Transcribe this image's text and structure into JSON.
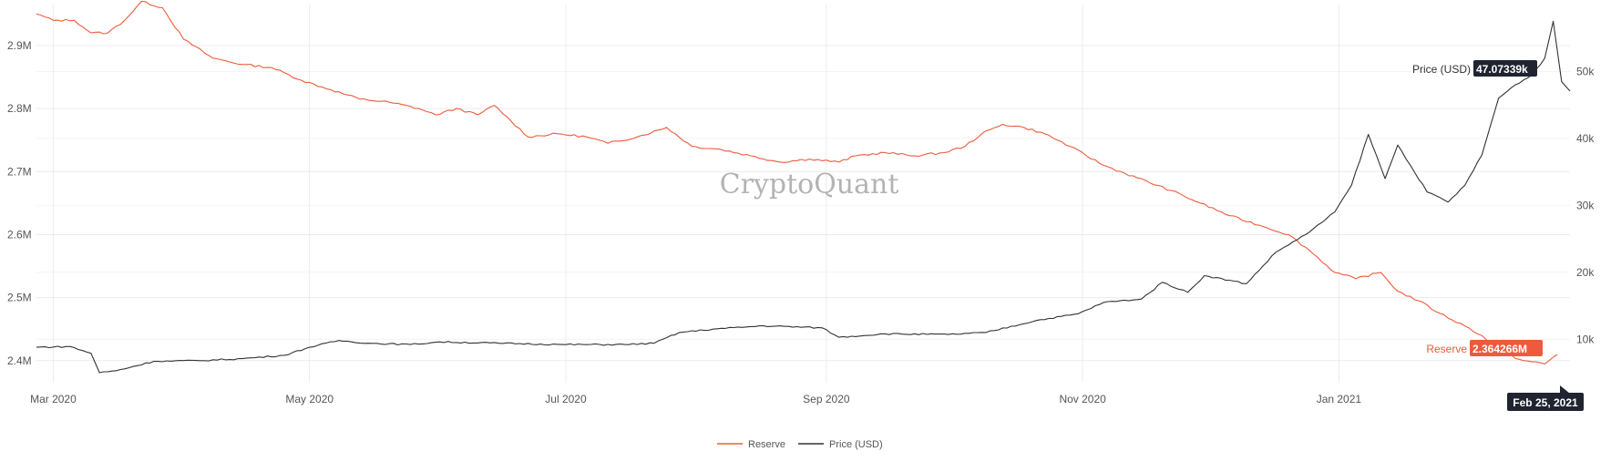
{
  "watermark": "CryptoQuant",
  "colors": {
    "reserve": "#ee5a3c",
    "price": "#333333",
    "tag_dark": "#1f2430",
    "grid": "#ececec"
  },
  "chart_data": {
    "type": "line",
    "x_ticks": [
      "Mar 2020",
      "May 2020",
      "Jul 2020",
      "Sep 2020",
      "Nov 2020",
      "Jan 2021"
    ],
    "x_tick_dates": [
      "2020-03-01",
      "2020-05-01",
      "2020-07-01",
      "2020-09-01",
      "2020-11-01",
      "2021-01-01"
    ],
    "xlim": [
      "2020-02-26",
      "2021-02-25"
    ],
    "y_left": {
      "ticks": [
        "2.4M",
        "2.5M",
        "2.6M",
        "2.7M",
        "2.8M",
        "2.9M"
      ],
      "values": [
        2400000,
        2500000,
        2600000,
        2700000,
        2800000,
        2900000
      ],
      "range": [
        2365000,
        2965000
      ]
    },
    "y_right": {
      "ticks": [
        "10k",
        "20k",
        "30k",
        "40k",
        "50k"
      ],
      "values": [
        10000,
        20000,
        30000,
        40000,
        50000
      ],
      "range": [
        3500,
        60000
      ]
    },
    "grid": true,
    "legend_placement": "bottom-center",
    "series": [
      {
        "name": "Reserve",
        "axis": "left",
        "points": [
          [
            "2020-02-26",
            2950000
          ],
          [
            "2020-03-01",
            2940000
          ],
          [
            "2020-03-06",
            2940000
          ],
          [
            "2020-03-10",
            2920000
          ],
          [
            "2020-03-14",
            2920000
          ],
          [
            "2020-03-18",
            2940000
          ],
          [
            "2020-03-22",
            2970000
          ],
          [
            "2020-03-27",
            2960000
          ],
          [
            "2020-04-01",
            2910000
          ],
          [
            "2020-04-08",
            2880000
          ],
          [
            "2020-04-15",
            2870000
          ],
          [
            "2020-04-22",
            2865000
          ],
          [
            "2020-04-29",
            2845000
          ],
          [
            "2020-05-06",
            2830000
          ],
          [
            "2020-05-13",
            2815000
          ],
          [
            "2020-05-20",
            2810000
          ],
          [
            "2020-05-27",
            2800000
          ],
          [
            "2020-05-31",
            2790000
          ],
          [
            "2020-06-05",
            2800000
          ],
          [
            "2020-06-10",
            2790000
          ],
          [
            "2020-06-14",
            2805000
          ],
          [
            "2020-06-18",
            2780000
          ],
          [
            "2020-06-22",
            2755000
          ],
          [
            "2020-06-29",
            2760000
          ],
          [
            "2020-07-06",
            2755000
          ],
          [
            "2020-07-11",
            2745000
          ],
          [
            "2020-07-18",
            2755000
          ],
          [
            "2020-07-25",
            2770000
          ],
          [
            "2020-07-31",
            2740000
          ],
          [
            "2020-08-07",
            2735000
          ],
          [
            "2020-08-14",
            2725000
          ],
          [
            "2020-08-21",
            2715000
          ],
          [
            "2020-08-28",
            2720000
          ],
          [
            "2020-09-04",
            2715000
          ],
          [
            "2020-09-08",
            2725000
          ],
          [
            "2020-09-15",
            2730000
          ],
          [
            "2020-09-22",
            2725000
          ],
          [
            "2020-09-29",
            2730000
          ],
          [
            "2020-10-04",
            2740000
          ],
          [
            "2020-10-08",
            2760000
          ],
          [
            "2020-10-13",
            2775000
          ],
          [
            "2020-10-18",
            2770000
          ],
          [
            "2020-10-23",
            2760000
          ],
          [
            "2020-10-29",
            2740000
          ],
          [
            "2020-11-06",
            2710000
          ],
          [
            "2020-11-14",
            2690000
          ],
          [
            "2020-11-22",
            2670000
          ],
          [
            "2020-11-29",
            2650000
          ],
          [
            "2020-12-06",
            2630000
          ],
          [
            "2020-12-13",
            2615000
          ],
          [
            "2020-12-20",
            2600000
          ],
          [
            "2020-12-25",
            2575000
          ],
          [
            "2020-12-31",
            2540000
          ],
          [
            "2021-01-05",
            2530000
          ],
          [
            "2021-01-11",
            2540000
          ],
          [
            "2021-01-15",
            2510000
          ],
          [
            "2021-01-20",
            2495000
          ],
          [
            "2021-01-25",
            2475000
          ],
          [
            "2021-01-31",
            2455000
          ],
          [
            "2021-02-04",
            2440000
          ],
          [
            "2021-02-07",
            2420000
          ],
          [
            "2021-02-10",
            2410000
          ],
          [
            "2021-02-14",
            2400000
          ],
          [
            "2021-02-19",
            2395000
          ],
          [
            "2021-02-22",
            2410000
          ]
        ]
      },
      {
        "name": "Price (USD)",
        "axis": "right",
        "points": [
          [
            "2020-02-26",
            8800
          ],
          [
            "2020-03-05",
            8900
          ],
          [
            "2020-03-10",
            7900
          ],
          [
            "2020-03-12",
            5000
          ],
          [
            "2020-03-16",
            5300
          ],
          [
            "2020-03-25",
            6700
          ],
          [
            "2020-04-05",
            6800
          ],
          [
            "2020-04-15",
            7100
          ],
          [
            "2020-04-25",
            7600
          ],
          [
            "2020-05-01",
            8800
          ],
          [
            "2020-05-08",
            9800
          ],
          [
            "2020-05-15",
            9400
          ],
          [
            "2020-05-25",
            9200
          ],
          [
            "2020-06-01",
            9600
          ],
          [
            "2020-06-15",
            9400
          ],
          [
            "2020-06-30",
            9200
          ],
          [
            "2020-07-15",
            9200
          ],
          [
            "2020-07-22",
            9400
          ],
          [
            "2020-07-28",
            11000
          ],
          [
            "2020-08-05",
            11500
          ],
          [
            "2020-08-17",
            12000
          ],
          [
            "2020-08-31",
            11700
          ],
          [
            "2020-09-04",
            10300
          ],
          [
            "2020-09-15",
            10800
          ],
          [
            "2020-09-30",
            10700
          ],
          [
            "2020-10-09",
            11000
          ],
          [
            "2020-10-21",
            12800
          ],
          [
            "2020-10-31",
            13800
          ],
          [
            "2020-11-06",
            15500
          ],
          [
            "2020-11-15",
            16000
          ],
          [
            "2020-11-20",
            18500
          ],
          [
            "2020-11-26",
            17000
          ],
          [
            "2020-11-30",
            19500
          ],
          [
            "2020-12-10",
            18300
          ],
          [
            "2020-12-17",
            23000
          ],
          [
            "2020-12-25",
            26000
          ],
          [
            "2020-12-31",
            29000
          ],
          [
            "2021-01-04",
            33000
          ],
          [
            "2021-01-08",
            40600
          ],
          [
            "2021-01-12",
            34000
          ],
          [
            "2021-01-15",
            39000
          ],
          [
            "2021-01-18",
            36000
          ],
          [
            "2021-01-22",
            32000
          ],
          [
            "2021-01-27",
            30500
          ],
          [
            "2021-01-31",
            33000
          ],
          [
            "2021-02-04",
            37500
          ],
          [
            "2021-02-08",
            46000
          ],
          [
            "2021-02-12",
            48000
          ],
          [
            "2021-02-16",
            49500
          ],
          [
            "2021-02-19",
            52000
          ],
          [
            "2021-02-21",
            57500
          ],
          [
            "2021-02-23",
            48500
          ],
          [
            "2021-02-25",
            47073.39
          ]
        ]
      }
    ],
    "hover": {
      "date_label": "Feb 25, 2021",
      "price": {
        "label": "Price (USD)",
        "value": "47.07339k"
      },
      "reserve": {
        "label": "Reserve",
        "value": "2.364266M"
      }
    }
  }
}
